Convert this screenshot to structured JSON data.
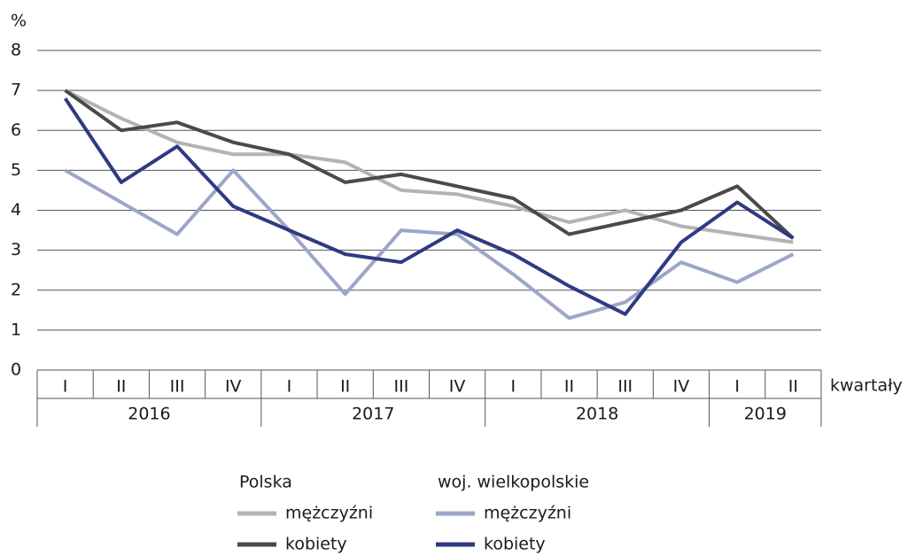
{
  "chart_data": {
    "type": "line",
    "y_axis_label": "%",
    "x_axis_label": "kwartały",
    "ylim": [
      0,
      8
    ],
    "yticks": [
      0,
      1,
      2,
      3,
      4,
      5,
      6,
      7,
      8
    ],
    "grid": true,
    "x_groups": [
      {
        "label": "2016",
        "categories": [
          "I",
          "II",
          "III",
          "IV"
        ]
      },
      {
        "label": "2017",
        "categories": [
          "I",
          "II",
          "III",
          "IV"
        ]
      },
      {
        "label": "2018",
        "categories": [
          "I",
          "II",
          "III",
          "IV"
        ]
      },
      {
        "label": "2019",
        "categories": [
          "I",
          "II"
        ]
      }
    ],
    "series_groups": [
      {
        "name": "Polska",
        "series": [
          {
            "name": "mężczyźni",
            "color": "#b3b3b3",
            "values": [
              7.0,
              6.3,
              5.7,
              5.4,
              5.4,
              5.2,
              4.5,
              4.4,
              4.1,
              3.7,
              4.0,
              3.6,
              3.4,
              3.2
            ]
          },
          {
            "name": "kobiety",
            "color": "#4a4a4a",
            "values": [
              7.0,
              6.0,
              6.2,
              5.7,
              5.4,
              4.7,
              4.9,
              4.6,
              4.3,
              3.4,
              3.7,
              4.0,
              4.6,
              3.3
            ]
          }
        ]
      },
      {
        "name": "woj. wielkopolskie",
        "series": [
          {
            "name": "mężczyźni",
            "color": "#9ca6c9",
            "values": [
              5.0,
              4.2,
              3.4,
              5.0,
              3.5,
              1.9,
              3.5,
              3.4,
              2.4,
              1.3,
              1.7,
              2.7,
              2.2,
              2.9
            ]
          },
          {
            "name": "kobiety",
            "color": "#2f3a82",
            "values": [
              6.8,
              4.7,
              5.6,
              4.1,
              3.5,
              2.9,
              2.7,
              3.5,
              2.9,
              2.1,
              1.4,
              3.2,
              4.2,
              3.3
            ]
          }
        ]
      }
    ]
  }
}
